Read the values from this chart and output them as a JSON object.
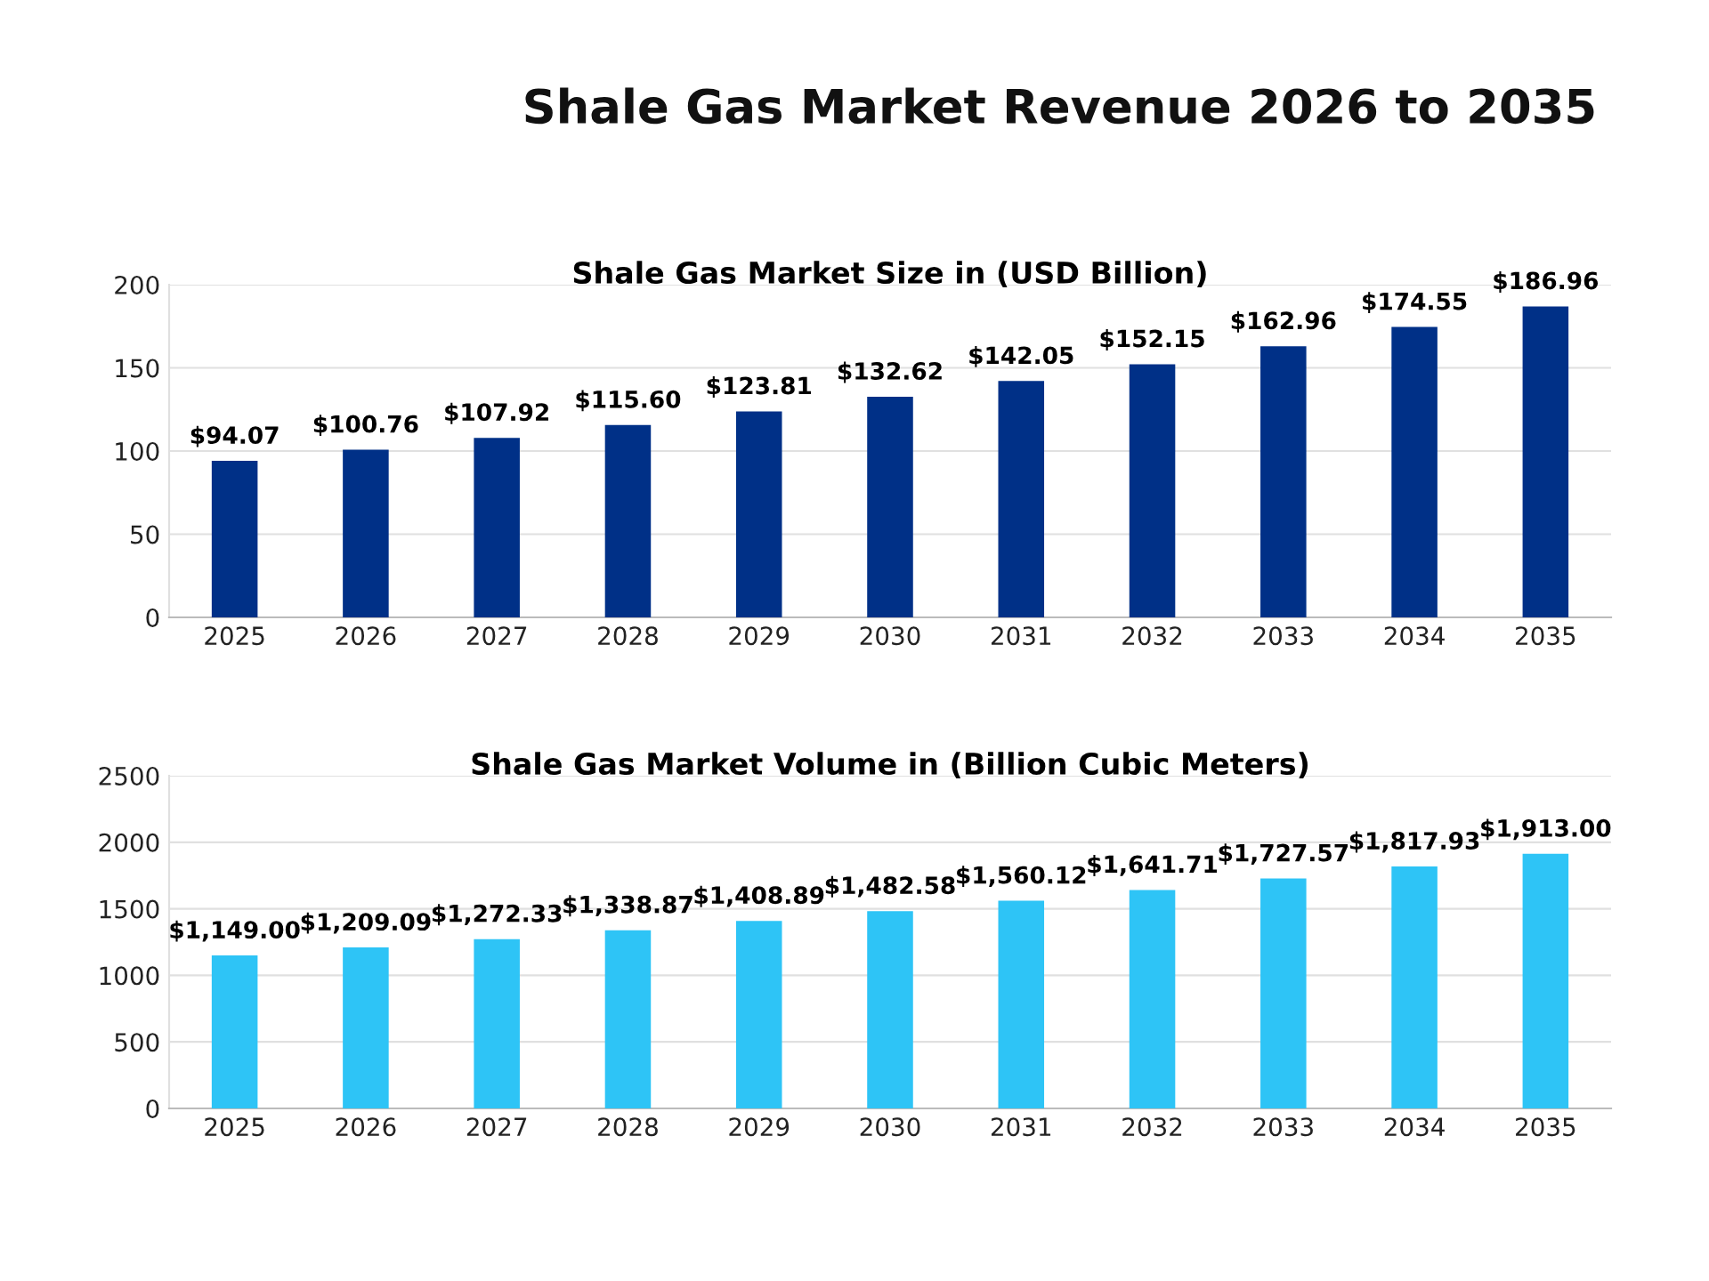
{
  "chart_data": [
    {
      "type": "bar",
      "title": "Shale Gas Market Size in (USD Billion)",
      "annotations": [
        "Shale Gas Market Revenue 2026 to 2035"
      ],
      "categories": [
        "2025",
        "2026",
        "2027",
        "2028",
        "2029",
        "2030",
        "2031",
        "2032",
        "2033",
        "2034",
        "2035"
      ],
      "values": [
        94.07,
        100.76,
        107.92,
        115.6,
        123.81,
        132.62,
        142.05,
        152.15,
        162.96,
        174.55,
        186.96
      ],
      "value_labels": [
        "$94.07",
        "$100.76",
        "$107.92",
        "$115.60",
        "$123.81",
        "$132.62",
        "$142.05",
        "$152.15",
        "$162.96",
        "$174.55",
        "$186.96"
      ],
      "color": "#003087",
      "ylim": [
        0,
        200
      ],
      "yticks": [
        0,
        50,
        100,
        150,
        200
      ],
      "grid": "y"
    },
    {
      "type": "bar",
      "title": "Shale Gas Market Volume in (Billion Cubic Meters)",
      "categories": [
        "2025",
        "2026",
        "2027",
        "2028",
        "2029",
        "2030",
        "2031",
        "2032",
        "2033",
        "2034",
        "2035"
      ],
      "values": [
        1149.0,
        1209.09,
        1272.33,
        1338.87,
        1408.89,
        1482.58,
        1560.12,
        1641.71,
        1727.57,
        1817.93,
        1913.0
      ],
      "value_labels": [
        "$1,149.00",
        "$1,209.09",
        "$1,272.33",
        "$1,338.87",
        "$1,408.89",
        "$1,482.58",
        "$1,560.12",
        "$1,641.71",
        "$1,727.57",
        "$1,817.93",
        "$1,913.00"
      ],
      "color": "#2ec4f6",
      "ylim": [
        0,
        2500
      ],
      "yticks": [
        0,
        500,
        1000,
        1500,
        2000,
        2500
      ],
      "grid": "y"
    }
  ]
}
